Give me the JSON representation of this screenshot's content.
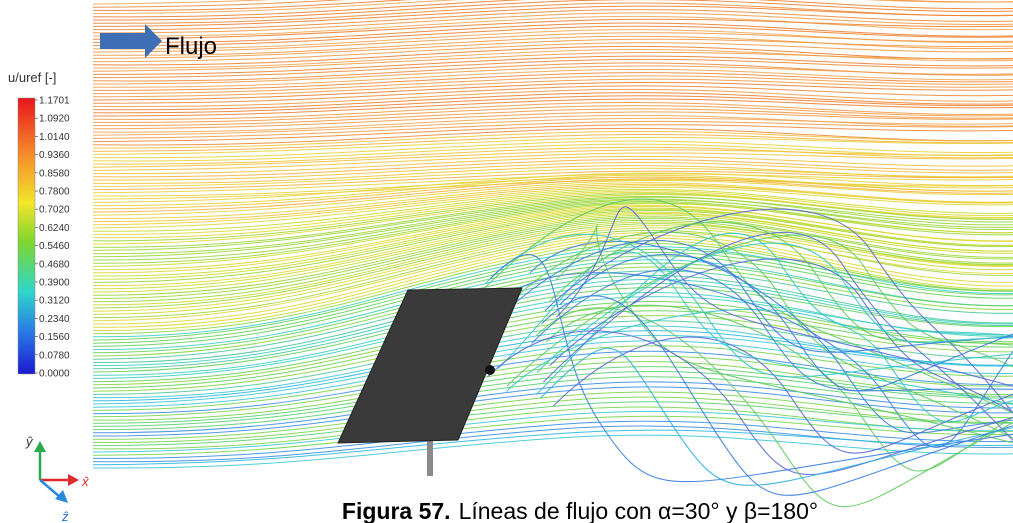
{
  "figure": {
    "flow_label": "Flujo",
    "colorbar": {
      "title": "u/uref [-]",
      "ticks": [
        {
          "value": 1.1701,
          "label": "1.1701"
        },
        {
          "value": 1.092,
          "label": "1.0920"
        },
        {
          "value": 1.014,
          "label": "1.0140"
        },
        {
          "value": 0.936,
          "label": "0.9360"
        },
        {
          "value": 0.858,
          "label": "0.8580"
        },
        {
          "value": 0.78,
          "label": "0.7800"
        },
        {
          "value": 0.702,
          "label": "0.7020"
        },
        {
          "value": 0.624,
          "label": "0.6240"
        },
        {
          "value": 0.546,
          "label": "0.5460"
        },
        {
          "value": 0.468,
          "label": "0.4680"
        },
        {
          "value": 0.39,
          "label": "0.3900"
        },
        {
          "value": 0.312,
          "label": "0.3120"
        },
        {
          "value": 0.234,
          "label": "0.2340"
        },
        {
          "value": 0.156,
          "label": "0.1560"
        },
        {
          "value": 0.078,
          "label": "0.0780"
        },
        {
          "value": 0,
          "label": "0.0000"
        }
      ]
    },
    "axes": {
      "y": "ŷ",
      "x": "x̂",
      "z": "ẑ"
    }
  },
  "caption": {
    "label": "Figura 57.",
    "text": "Líneas de flujo con α=30° y β=180°"
  }
}
